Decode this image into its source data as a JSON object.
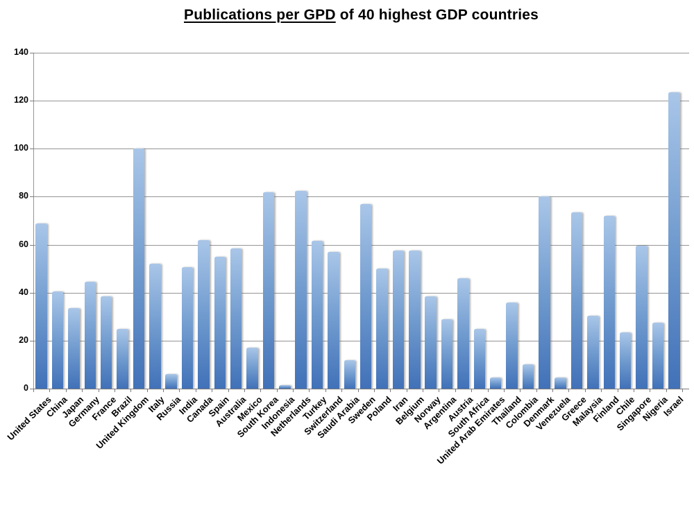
{
  "header": {
    "underlined": "Publications per GPD",
    "rest": " of 40 highest GDP countries"
  },
  "colors": {
    "bar_top": "#a9c6e8",
    "bar_mid": "#6f9ace",
    "bar_bottom": "#4171b8",
    "gridline": "#949494",
    "axis": "#7a7a7a",
    "text": "#000000",
    "background": "#ffffff"
  },
  "chart_data": {
    "type": "bar",
    "title": "Publications per GPD of 40 highest GDP countries",
    "xlabel": "",
    "ylabel": "",
    "ylim": [
      0,
      140
    ],
    "ytick_step": 20,
    "ytick_labels": [
      "0",
      "20",
      "40",
      "60",
      "80",
      "100",
      "120",
      "140"
    ],
    "grid": true,
    "legend": false,
    "categories": [
      "United States",
      "China",
      "Japan",
      "Germany",
      "France",
      "Brazil",
      "United Kingdom",
      "Italy",
      "Russia",
      "India",
      "Canada",
      "Spain",
      "Australia",
      "Mexico",
      "South Korea",
      "Indonesia",
      "Netherlands",
      "Turkey",
      "Switzerland",
      "Saudi Arabia",
      "Sweden",
      "Poland",
      "Iran",
      "Belgium",
      "Norway",
      "Argentina",
      "Austria",
      "South Africa",
      "United Arab Emirates",
      "Thailand",
      "Colombia",
      "Denmark",
      "Venezuela",
      "Greece",
      "Malaysia",
      "Finland",
      "Chile",
      "Singapore",
      "Nigeria",
      "Israel"
    ],
    "values": [
      69,
      40.5,
      33.5,
      44.5,
      38.5,
      25,
      100,
      52,
      6,
      50.5,
      62,
      55,
      58.5,
      17,
      82,
      1.5,
      82.5,
      61.5,
      57,
      12,
      77,
      50,
      57.5,
      57.5,
      38.5,
      29,
      46,
      25,
      4.5,
      36,
      10,
      80,
      4.5,
      73.5,
      30.5,
      72,
      23.5,
      59.5,
      27.5,
      123.5
    ]
  }
}
